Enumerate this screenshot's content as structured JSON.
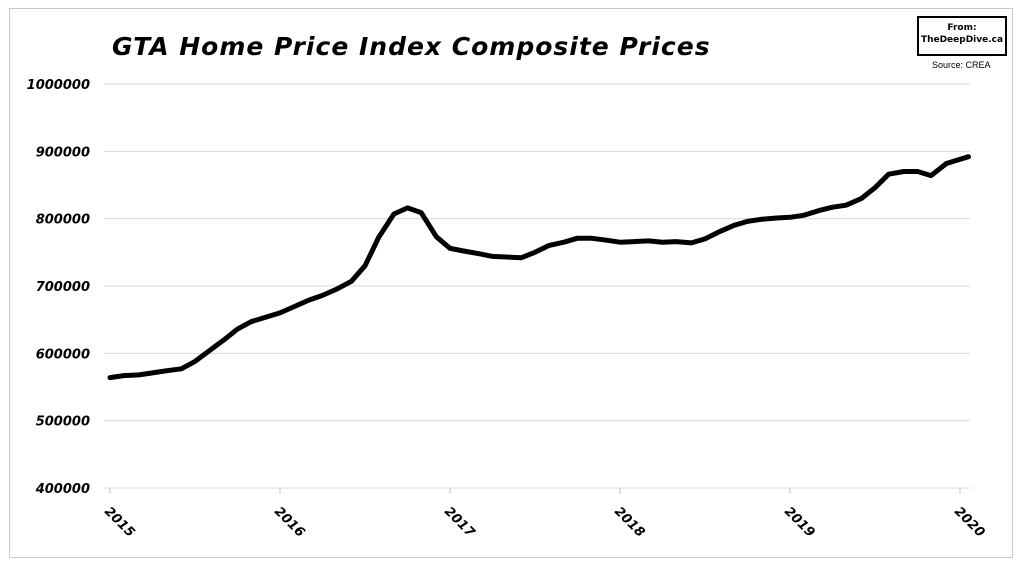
{
  "chart_data": {
    "type": "line",
    "title": "GTA Home Price Index Composite Prices",
    "source": "Source: CREA",
    "badge": {
      "line1": "From:",
      "line2": "TheDeepDive.ca"
    },
    "xlabel": "",
    "ylabel": "",
    "ylim": [
      400000,
      1000000
    ],
    "xlim": [
      2015,
      2020
    ],
    "y_ticks": [
      400000,
      500000,
      600000,
      700000,
      800000,
      900000,
      1000000
    ],
    "y_tick_labels": [
      "400000",
      "500000",
      "600000",
      "700000",
      "800000",
      "900000",
      "1000000"
    ],
    "x_ticks": [
      2015,
      2016,
      2017,
      2018,
      2019,
      2020
    ],
    "x_tick_labels": [
      "2015",
      "2016",
      "2017",
      "2018",
      "2019",
      "2020"
    ],
    "grid": "horizontal",
    "line_color": "#000000",
    "series": [
      {
        "x": [
          2015.0,
          2015.08,
          2015.17,
          2015.25,
          2015.33,
          2015.42,
          2015.5,
          2015.58,
          2015.67,
          2015.75,
          2015.83,
          2015.92,
          2016.0,
          2016.08,
          2016.17,
          2016.25,
          2016.33,
          2016.42,
          2016.5,
          2016.58,
          2016.67,
          2016.75,
          2016.83,
          2016.92,
          2017.0,
          2017.08,
          2017.17,
          2017.25,
          2017.33,
          2017.42,
          2017.5,
          2017.58,
          2017.67,
          2017.75,
          2017.83,
          2017.92,
          2018.0,
          2018.08,
          2018.17,
          2018.25,
          2018.33,
          2018.42,
          2018.5,
          2018.58,
          2018.67,
          2018.75,
          2018.83,
          2018.92,
          2019.0,
          2019.08,
          2019.17,
          2019.25,
          2019.33,
          2019.42,
          2019.5,
          2019.58,
          2019.67,
          2019.75,
          2019.83,
          2019.92,
          2020.05
        ],
        "values": [
          564000,
          567000,
          568000,
          571000,
          574000,
          577000,
          588000,
          603000,
          620000,
          636000,
          647000,
          654000,
          660000,
          669000,
          679000,
          686000,
          695000,
          707000,
          730000,
          772000,
          807000,
          816000,
          809000,
          773000,
          756000,
          752000,
          748000,
          744000,
          743000,
          742000,
          750000,
          760000,
          765000,
          771000,
          771000,
          768000,
          765000,
          766000,
          767000,
          765000,
          766000,
          764000,
          770000,
          780000,
          790000,
          796000,
          799000,
          801000,
          802000,
          805000,
          812000,
          817000,
          820000,
          830000,
          846000,
          866000,
          870000,
          870000,
          864000,
          882000,
          892000
        ]
      }
    ]
  }
}
